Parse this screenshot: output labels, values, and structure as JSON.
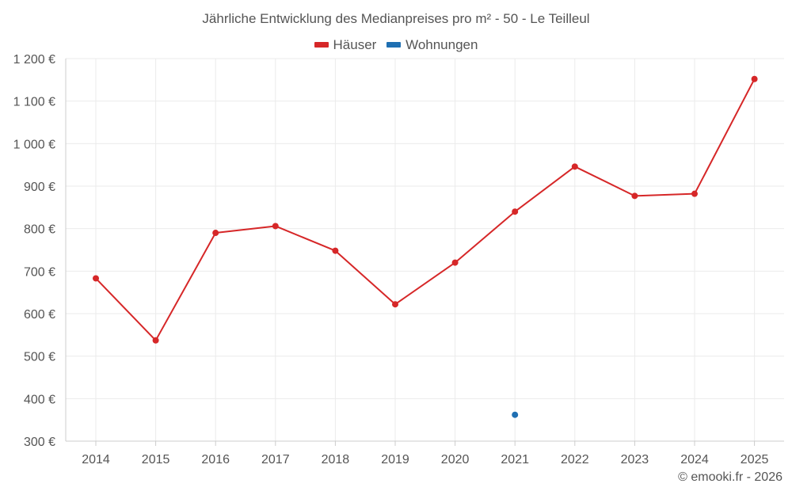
{
  "title": "Jährliche Entwicklung des Medianpreises pro m² - 50 - Le Teilleul",
  "watermark": "© emooki.fr - 2026",
  "colors": {
    "houses": "#d62728",
    "apartments": "#1f6fb2",
    "grid": "#ebebeb",
    "axis": "#cccccc"
  },
  "chart_data": {
    "type": "line",
    "title": "Jährliche Entwicklung des Medianpreises pro m² - 50 - Le Teilleul",
    "xlabel": "",
    "ylabel": "",
    "categories": [
      "2014",
      "2015",
      "2016",
      "2017",
      "2018",
      "2019",
      "2020",
      "2021",
      "2022",
      "2023",
      "2024",
      "2025"
    ],
    "ylim": [
      300,
      1200
    ],
    "yticks": [
      300,
      400,
      500,
      600,
      700,
      800,
      900,
      1000,
      1100,
      1200
    ],
    "ytick_labels": [
      "300 €",
      "400 €",
      "500 €",
      "600 €",
      "700 €",
      "800 €",
      "900 €",
      "1 000 €",
      "1 100 €",
      "1 200 €"
    ],
    "grid": true,
    "legend_position": "top-center",
    "series": [
      {
        "name": "Häuser",
        "color": "#d62728",
        "values": [
          683,
          537,
          790,
          806,
          748,
          622,
          720,
          840,
          946,
          877,
          882,
          1152
        ]
      },
      {
        "name": "Wohnungen",
        "color": "#1f6fb2",
        "values": [
          null,
          null,
          null,
          null,
          null,
          null,
          null,
          362,
          null,
          null,
          null,
          null
        ]
      }
    ]
  }
}
